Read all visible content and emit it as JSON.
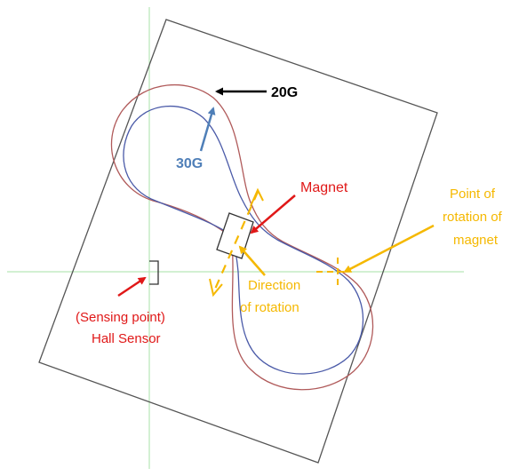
{
  "labels": {
    "field_20g": "20G",
    "field_30g": "30G",
    "magnet": "Magnet",
    "rotation_point_line1": "Point of",
    "rotation_point_line2": "rotation of",
    "rotation_point_line3": "magnet",
    "direction_line1": "Direction",
    "direction_line2": "of rotation",
    "sensor_line1": "(Sensing point)",
    "sensor_line2": "Hall Sensor"
  },
  "colors": {
    "background": "#ffffff",
    "guide_line": "#b6e6b6",
    "board_outline": "#555555",
    "contour_20g": "#b05a5a",
    "contour_30g": "#4a5aa8",
    "arrow_black": "#000000",
    "arrow_blue": "#4f7fb8",
    "arrow_red": "#e01818",
    "arrow_orange": "#f5b800",
    "text_black": "#000000",
    "text_blue": "#4f7fb8",
    "text_red": "#e01818",
    "text_orange": "#f5b800"
  },
  "icons": {
    "hall_sensor": "bracket-icon",
    "magnet": "rectangle-icon"
  }
}
